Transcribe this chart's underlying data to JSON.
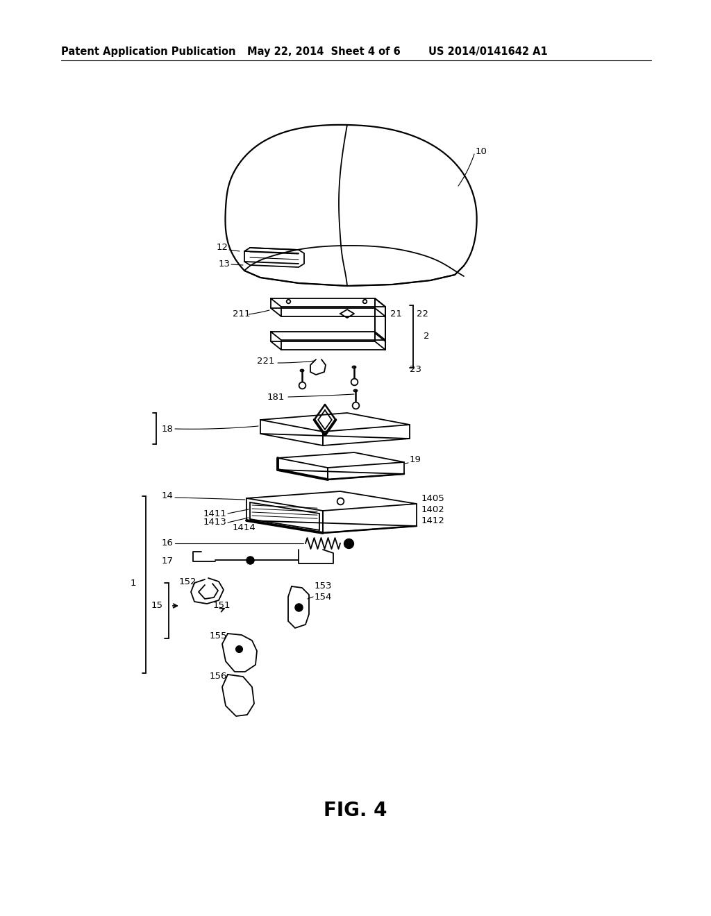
{
  "bg_color": "#ffffff",
  "header_left": "Patent Application Publication",
  "header_mid": "May 22, 2014  Sheet 4 of 6",
  "header_right": "US 2014/0141642 A1",
  "fig_label": "FIG. 4",
  "title_fontsize": 10.5,
  "label_fontsize": 9.5
}
